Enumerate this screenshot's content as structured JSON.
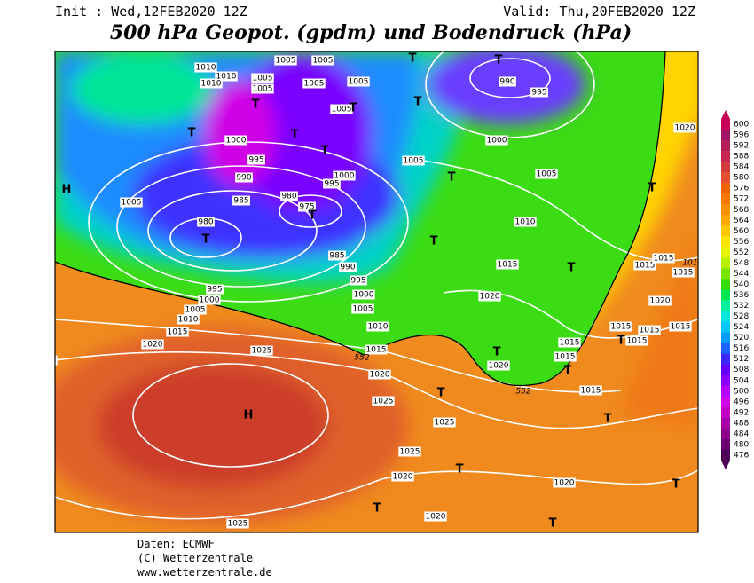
{
  "header": {
    "init": "Init : Wed,12FEB2020 12Z",
    "valid": "Valid: Thu,20FEB2020 12Z",
    "title": "500 hPa Geopot. (gpdm) und Bodendruck (hPa)"
  },
  "map": {
    "isobar_labels": [
      "1010",
      "1010",
      "1010",
      "1005",
      "1005",
      "1005",
      "1005",
      "1005",
      "1005",
      "1005",
      "1000",
      "990",
      "995",
      "1000",
      "1005",
      "1005",
      "995",
      "990",
      "985",
      "980",
      "975",
      "980",
      "1005",
      "1000",
      "995",
      "1010",
      "1015",
      "985",
      "990",
      "995",
      "1000",
      "1005",
      "1010",
      "995",
      "1000",
      "1005",
      "1010",
      "1015",
      "1020",
      "1025",
      "1025",
      "1015",
      "552",
      "1020",
      "1020",
      "552",
      "1020",
      "1015",
      "1015",
      "101",
      "1015",
      "1020",
      "1015",
      "1015",
      "1015",
      "1015",
      "1015",
      "1015",
      "1015",
      "1025",
      "1025",
      "1025",
      "1020",
      "1020",
      "1020",
      "1025",
      "1020"
    ],
    "pressure_centers": [
      "H",
      "H",
      "T",
      "T",
      "T",
      "T",
      "T",
      "T",
      "T",
      "T",
      "T",
      "T",
      "T",
      "T",
      "T",
      "T",
      "T",
      "T",
      "T",
      "T",
      "T",
      "T",
      "T",
      "T",
      "T"
    ]
  },
  "legend": {
    "levels": [
      600,
      596,
      592,
      588,
      584,
      580,
      576,
      572,
      568,
      564,
      560,
      556,
      552,
      548,
      544,
      540,
      536,
      532,
      528,
      524,
      520,
      516,
      512,
      508,
      504,
      500,
      496,
      492,
      488,
      484,
      480,
      476
    ],
    "colors": [
      "#c8005a",
      "#a01464",
      "#b41e5a",
      "#c82850",
      "#d23c3c",
      "#e65032",
      "#f06400",
      "#ff7800",
      "#ff9100",
      "#ffaa00",
      "#ffc800",
      "#ffe600",
      "#e6f500",
      "#b4f000",
      "#78e600",
      "#32dc00",
      "#00e650",
      "#00f0a0",
      "#00e6dc",
      "#00c8ff",
      "#009bff",
      "#1e64ff",
      "#3c28ff",
      "#6400ff",
      "#8c00ff",
      "#b400ff",
      "#d000e6",
      "#c400c8",
      "#a800a8",
      "#8a0088",
      "#6a006f",
      "#4b0056"
    ]
  },
  "footer": {
    "source": "Daten: ECMWF",
    "copyright": "(C) Wetterzentrale",
    "url": "www.wetterzentrale.de"
  }
}
